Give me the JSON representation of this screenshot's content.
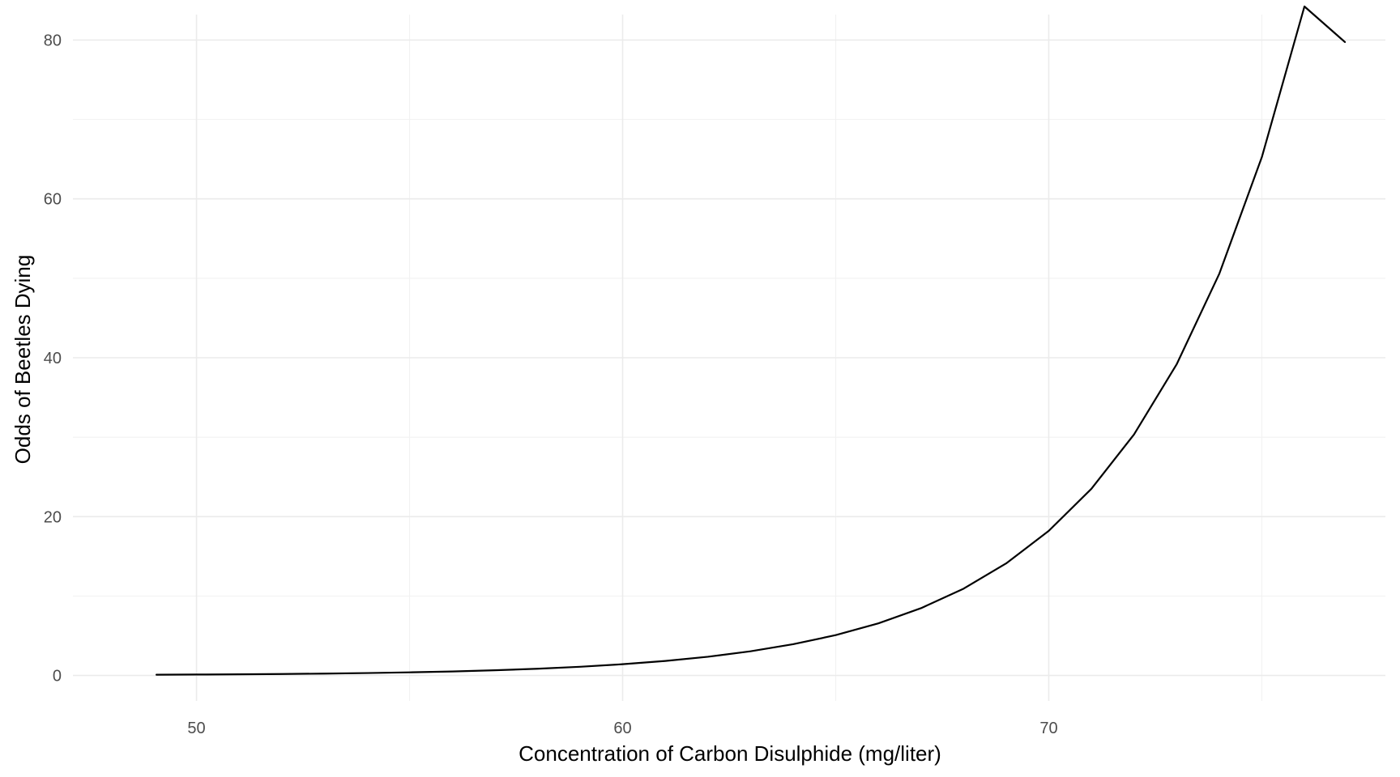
{
  "chart_data": {
    "type": "line",
    "title": "",
    "xlabel": "Concentration of Carbon Disulphide (mg/liter)",
    "ylabel": "Odds of Beetles Dying",
    "xlim": [
      47.1,
      77.9
    ],
    "ylim": [
      -3.2,
      83.2
    ],
    "x_ticks": [
      50,
      60,
      70
    ],
    "x_tick_labels": [
      "50",
      "60",
      "70"
    ],
    "x_minor_ticks": [
      55,
      65,
      75
    ],
    "y_ticks": [
      0,
      20,
      40,
      60,
      80
    ],
    "y_tick_labels": [
      "0",
      "20",
      "40",
      "60",
      "80"
    ],
    "y_minor_ticks": [
      10,
      30,
      50,
      70
    ],
    "grid": true,
    "legend": "none",
    "colors": {
      "line": "#000000",
      "grid_major": "#ebebeb",
      "grid_minor": "#f2f2f2",
      "tick_text": "#4d4d4d",
      "axis_title": "#000000",
      "background": "#ffffff"
    },
    "series": [
      {
        "x": [
          49.06,
          50,
          51,
          52,
          53,
          54,
          55,
          56,
          57,
          58,
          59,
          60,
          61,
          62,
          63,
          64,
          65,
          66,
          67,
          68,
          69,
          70,
          71,
          72,
          73,
          74,
          75,
          76,
          76.95
        ],
        "values": [
          0.1,
          0.12,
          0.15,
          0.19,
          0.24,
          0.31,
          0.4,
          0.51,
          0.66,
          0.85,
          1.1,
          1.42,
          1.83,
          2.36,
          3.05,
          3.94,
          5.08,
          6.56,
          8.47,
          10.93,
          14.11,
          18.21,
          23.5,
          30.34,
          39.16,
          50.55,
          65.25,
          84.22,
          79.74
        ]
      }
    ]
  }
}
